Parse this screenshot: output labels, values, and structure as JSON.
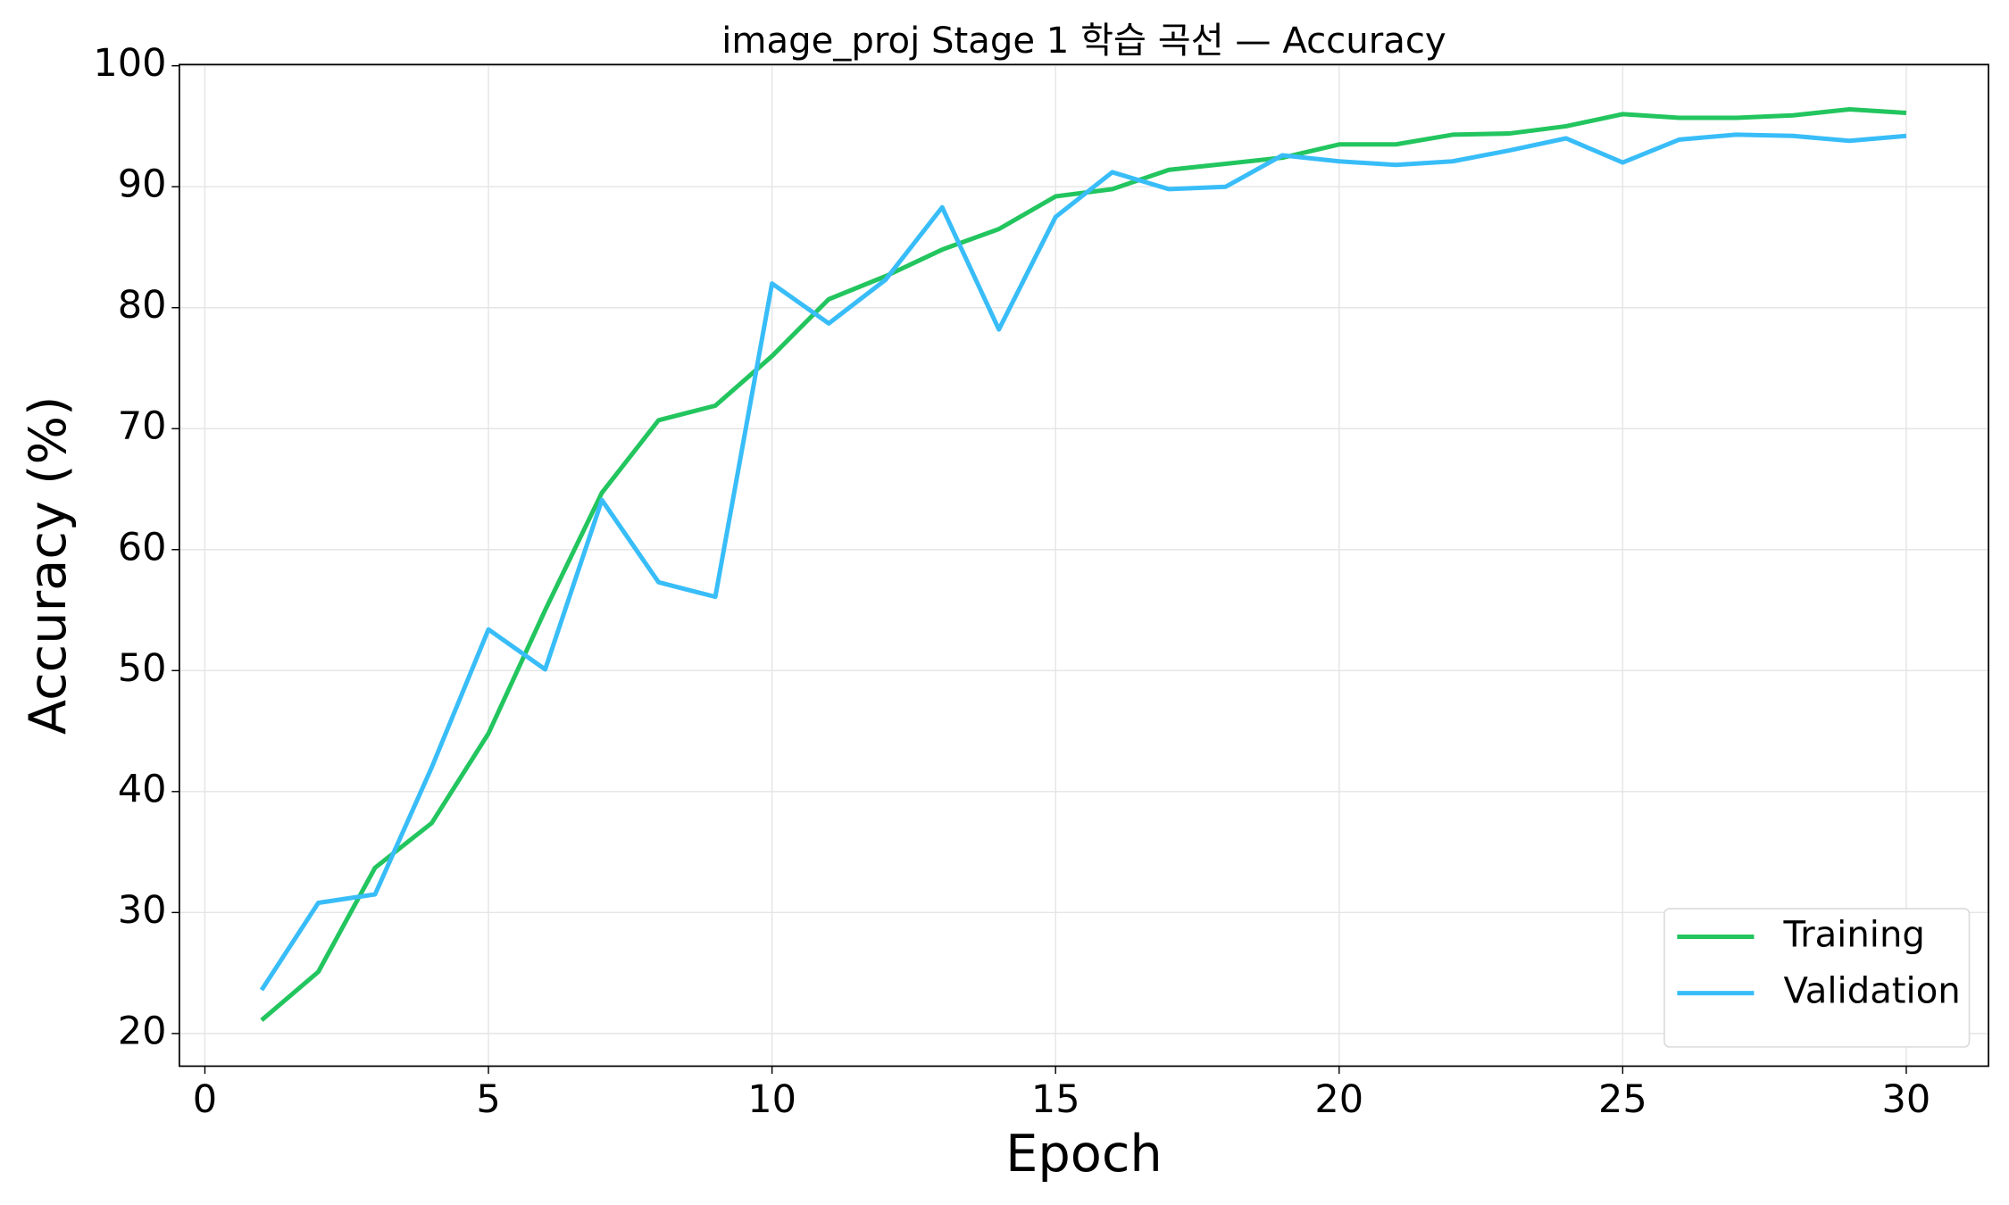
{
  "chart_data": {
    "type": "line",
    "title": "image_proj Stage 1 학습 곡선 — Accuracy",
    "x_label": "Epoch",
    "y_label": "Accuracy (%)",
    "x": [
      1,
      2,
      3,
      4,
      5,
      6,
      7,
      8,
      9,
      10,
      11,
      12,
      13,
      14,
      15,
      16,
      17,
      18,
      19,
      20,
      21,
      22,
      23,
      24,
      25,
      26,
      27,
      28,
      29,
      30
    ],
    "series": [
      {
        "name": "Training",
        "color": "#22c55e",
        "values": [
          21.1,
          25.1,
          33.7,
          37.4,
          44.8,
          55.0,
          64.7,
          70.7,
          71.9,
          76.0,
          80.7,
          82.6,
          84.8,
          86.5,
          89.2,
          89.8,
          91.4,
          91.9,
          92.4,
          93.5,
          93.5,
          94.3,
          94.4,
          95.0,
          96.0,
          95.7,
          95.7,
          95.9,
          96.4,
          96.1
        ]
      },
      {
        "name": "Validation",
        "color": "#38bdf8",
        "values": [
          23.6,
          30.8,
          31.5,
          42.0,
          53.4,
          50.1,
          64.1,
          57.3,
          56.1,
          82.0,
          78.7,
          82.3,
          88.3,
          78.2,
          87.5,
          91.2,
          89.8,
          90.0,
          92.6,
          92.1,
          91.8,
          92.1,
          93.0,
          94.0,
          92.0,
          93.9,
          94.3,
          94.2,
          93.8,
          94.2
        ]
      }
    ],
    "xlim": [
      -0.45,
      31.45
    ],
    "ylim": [
      17.3,
      100.1
    ],
    "xticks": [
      0,
      5,
      10,
      15,
      20,
      25,
      30
    ],
    "yticks": [
      20,
      30,
      40,
      50,
      60,
      70,
      80,
      90,
      100
    ],
    "grid": true,
    "legend": "lower right"
  }
}
